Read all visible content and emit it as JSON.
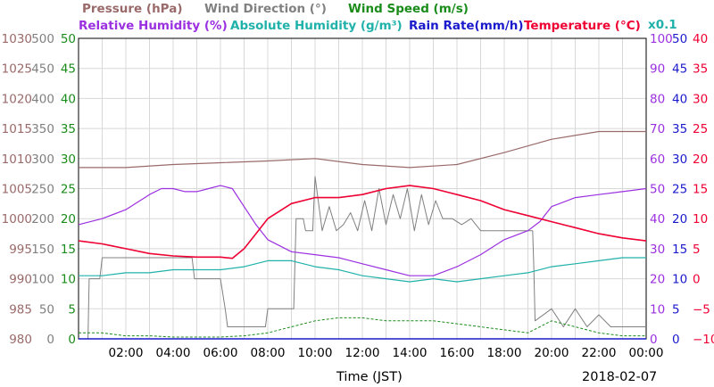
{
  "chart_data": {
    "type": "line",
    "xlabel": "Time (JST)",
    "date": "2018-02-07",
    "x_ticks": [
      "02:00",
      "04:00",
      "06:00",
      "08:00",
      "10:00",
      "12:00",
      "14:00",
      "16:00",
      "18:00",
      "20:00",
      "22:00",
      "00:00"
    ],
    "x_range_hours": [
      0,
      24
    ],
    "grid": true,
    "legend_placement": "top",
    "legend_row1": [
      {
        "name": "Pressure (hPa)",
        "color": "#9a6a6a"
      },
      {
        "name": "Wind Direction (°)",
        "color": "#808080"
      },
      {
        "name": "Wind Speed (m/s)",
        "color": "#1a8c1a"
      }
    ],
    "legend_row2": [
      {
        "name": "Relative Humidity (%)",
        "color": "#9b30e0"
      },
      {
        "name": "Absolute Humidity (g/m³)",
        "color": "#20b2aa"
      },
      {
        "name": "Rain Rate(mm/h)",
        "color": "#1a1acc"
      },
      {
        "name": "Temperature (°C)",
        "color": "#ee0033"
      }
    ],
    "abs_humidity_scale_note": "x0.1",
    "axes": {
      "pressure": {
        "ticks": [
          "1030",
          "1025",
          "1020",
          "1015",
          "1010",
          "1005",
          "1000",
          "995",
          "990",
          "985",
          "980"
        ],
        "range": [
          980,
          1030
        ],
        "color": "#9a6a6a"
      },
      "wind_dir": {
        "ticks": [
          "500",
          "450",
          "400",
          "350",
          "300",
          "250",
          "200",
          "150",
          "100",
          "50",
          "0"
        ],
        "range": [
          0,
          500
        ],
        "color": "#808080"
      },
      "wind_speed": {
        "ticks": [
          "50",
          "45",
          "40",
          "35",
          "30",
          "25",
          "20",
          "15",
          "10",
          "5",
          "0"
        ],
        "range": [
          0,
          50
        ],
        "color": "#1a8c1a"
      },
      "rel_humidity": {
        "ticks": [
          "100",
          "90",
          "80",
          "70",
          "60",
          "50",
          "40",
          "30",
          "20",
          "10",
          "0"
        ],
        "range": [
          0,
          100
        ],
        "color": "#9b30e0"
      },
      "rain_rate": {
        "ticks": [
          "50",
          "45",
          "40",
          "35",
          "30",
          "25",
          "20",
          "15",
          "10",
          "5",
          "0"
        ],
        "range": [
          0,
          50
        ],
        "color": "#1a1acc"
      },
      "temperature": {
        "ticks": [
          "40",
          "35",
          "30",
          "25",
          "20",
          "15",
          "10",
          "5",
          "0",
          "−5",
          "−10"
        ],
        "range": [
          -10,
          40
        ],
        "color": "#ee0033"
      }
    },
    "series": [
      {
        "name": "Pressure (hPa)",
        "axis": "pressure",
        "x": [
          0,
          2,
          4,
          6,
          8,
          10,
          12,
          14,
          16,
          18,
          20,
          22,
          24
        ],
        "y": [
          1008.5,
          1008.5,
          1009.0,
          1009.3,
          1009.6,
          1010.0,
          1009.0,
          1008.5,
          1009.0,
          1011.0,
          1013.2,
          1014.5,
          1014.5
        ]
      },
      {
        "name": "Wind Direction (°)",
        "axis": "wind_dir",
        "x": [
          0,
          0.4,
          0.45,
          0.5,
          0.9,
          1.0,
          4.8,
          4.9,
          6.0,
          6.2,
          6.3,
          7.9,
          8.0,
          9.1,
          9.2,
          9.5,
          9.6,
          9.9,
          10.0,
          10.3,
          10.6,
          10.9,
          11.2,
          11.5,
          11.8,
          12.1,
          12.4,
          12.7,
          13.0,
          13.3,
          13.6,
          13.9,
          14.2,
          14.5,
          14.8,
          15.1,
          15.4,
          15.8,
          16.2,
          16.6,
          17.0,
          19.2,
          19.25,
          19.3,
          20.0,
          20.5,
          21.0,
          21.5,
          22.0,
          22.5,
          23.0,
          23.5,
          24.0
        ],
        "y": [
          0,
          0,
          100,
          100,
          100,
          135,
          135,
          100,
          100,
          50,
          20,
          20,
          50,
          50,
          200,
          200,
          180,
          180,
          270,
          180,
          220,
          180,
          190,
          210,
          180,
          230,
          180,
          250,
          190,
          240,
          200,
          250,
          180,
          240,
          190,
          230,
          200,
          200,
          190,
          200,
          180,
          180,
          120,
          30,
          50,
          20,
          50,
          20,
          40,
          20,
          20,
          20,
          20
        ]
      },
      {
        "name": "Wind Speed (m/s)",
        "axis": "wind_speed",
        "x": [
          0,
          1,
          2,
          3,
          4,
          5,
          6,
          7,
          8,
          9,
          10,
          11,
          12,
          13,
          14,
          15,
          16,
          17,
          18,
          19,
          20,
          21,
          22,
          23,
          24
        ],
        "y": [
          1,
          1,
          0.5,
          0.5,
          0.3,
          0.3,
          0.3,
          0.5,
          1,
          2,
          3,
          3.5,
          3.5,
          3,
          3,
          3,
          2.5,
          2,
          1.5,
          1,
          3,
          2,
          1,
          0.5,
          0.5
        ]
      },
      {
        "name": "Relative Humidity (%)",
        "axis": "rel_humidity",
        "x": [
          0,
          1,
          2,
          3,
          3.5,
          4,
          4.5,
          5,
          5.5,
          6,
          6.5,
          7,
          7.5,
          8,
          9,
          10,
          11,
          12,
          13,
          14,
          15,
          16,
          17,
          18,
          19,
          19.5,
          20,
          21,
          22,
          23,
          24
        ],
        "y": [
          38,
          40,
          43,
          48,
          50,
          50,
          49,
          49,
          50,
          51,
          50,
          44,
          38,
          33,
          29,
          28,
          27,
          25,
          23,
          21,
          21,
          24,
          28,
          33,
          36,
          39,
          44,
          47,
          48,
          49,
          50
        ]
      },
      {
        "name": "Absolute Humidity (g/m³)",
        "axis": "rel_humidity",
        "x": [
          0,
          1,
          2,
          3,
          4,
          5,
          6,
          7,
          8,
          9,
          10,
          11,
          12,
          13,
          14,
          15,
          16,
          17,
          18,
          19,
          20,
          21,
          22,
          23,
          24
        ],
        "y": [
          21,
          21,
          22,
          22,
          23,
          23,
          23,
          24,
          26,
          26,
          24,
          23,
          21,
          20,
          19,
          20,
          19,
          20,
          21,
          22,
          24,
          25,
          26,
          27,
          27
        ]
      },
      {
        "name": "Rain Rate(mm/h)",
        "axis": "rain_rate",
        "x": [
          0,
          24
        ],
        "y": [
          0,
          0
        ]
      },
      {
        "name": "Temperature (°C)",
        "axis": "temperature",
        "x": [
          0,
          1,
          2,
          3,
          4,
          5,
          6,
          6.5,
          7,
          7.5,
          8,
          9,
          10,
          11,
          12,
          13,
          14,
          15,
          16,
          17,
          18,
          19,
          20,
          21,
          22,
          23,
          24
        ],
        "y": [
          6.3,
          5.8,
          5.0,
          4.2,
          3.8,
          3.6,
          3.6,
          3.4,
          5.0,
          7.5,
          10.0,
          12.5,
          13.5,
          13.5,
          14.0,
          15.0,
          15.5,
          15.0,
          14.0,
          13.0,
          11.5,
          10.5,
          9.5,
          8.5,
          7.5,
          6.8,
          6.3
        ]
      }
    ]
  }
}
